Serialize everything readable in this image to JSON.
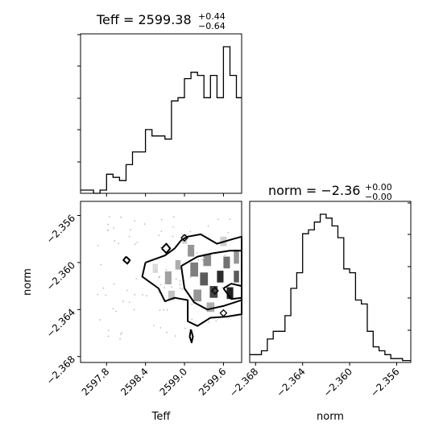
{
  "chart_data": {
    "type": "corner",
    "parameters": [
      {
        "name": "Teff",
        "xlabel": "Teff",
        "title": {
          "prefix": "Teff = ",
          "value": "2599.38",
          "plus": "+0.44",
          "minus": "−0.64"
        },
        "range": [
          2597.4,
          2599.88
        ],
        "ticks": [
          2597.8,
          2598.4,
          2599.0,
          2599.6
        ],
        "tick_labels": [
          "2597.8",
          "2598.4",
          "2599.0",
          "2599.6"
        ],
        "histogram": {
          "bin_edges": [
            2597.4,
            2597.5,
            2597.6,
            2597.7,
            2597.8,
            2597.9,
            2598.0,
            2598.1,
            2598.2,
            2598.3,
            2598.4,
            2598.5,
            2598.6,
            2598.7,
            2598.8,
            2598.9,
            2599.0,
            2599.1,
            2599.2,
            2599.3,
            2599.4,
            2599.5,
            2599.6,
            2599.7,
            2599.8,
            2599.88
          ],
          "counts": [
            1,
            1,
            0,
            1,
            6,
            5,
            4,
            9,
            13,
            13,
            20,
            18,
            18,
            17,
            29,
            30,
            36,
            38,
            37,
            30,
            37,
            30,
            46,
            37,
            30
          ]
        }
      },
      {
        "name": "norm",
        "xlabel": "norm",
        "ylabel": "norm",
        "title": {
          "prefix": "norm = ",
          "value": "−2.36",
          "plus": "+0.00",
          "minus": "−0.00"
        },
        "range": [
          -2.3685,
          -2.3548
        ],
        "ticks": [
          -2.368,
          -2.364,
          -2.36,
          -2.356
        ],
        "tick_labels": [
          "−2.368",
          "−2.364",
          "−2.360",
          "−2.356"
        ],
        "histogram": {
          "bin_edges": [
            -2.3685,
            -2.368,
            -2.3675,
            -2.367,
            -2.3665,
            -2.366,
            -2.3655,
            -2.365,
            -2.3645,
            -2.364,
            -2.3635,
            -2.363,
            -2.3625,
            -2.362,
            -2.3615,
            -2.361,
            -2.3605,
            -2.36,
            -2.3595,
            -2.359,
            -2.3585,
            -2.358,
            -2.3575,
            -2.357,
            -2.3565,
            -2.356,
            -2.3555,
            -2.3548
          ],
          "counts": [
            2,
            2,
            3,
            6,
            8,
            8,
            12,
            19,
            23,
            33,
            34,
            36,
            38,
            37,
            35,
            32,
            24,
            23,
            16,
            15,
            8,
            4,
            3,
            2,
            1,
            1,
            0.5
          ]
        }
      }
    ],
    "joint": {
      "x": "Teff",
      "y": "norm",
      "xlim": [
        2597.4,
        2599.88
      ],
      "ylim": [
        -2.3685,
        -2.3548
      ],
      "density": [
        {
          "x": 2598.9,
          "y": -2.3602,
          "w": 0.08,
          "h": 0.0008,
          "level": 0.35
        },
        {
          "x": 2598.75,
          "y": -2.3613,
          "w": 0.1,
          "h": 0.0011,
          "level": 0.4
        },
        {
          "x": 2599.1,
          "y": -2.359,
          "w": 0.1,
          "h": 0.001,
          "level": 0.45
        },
        {
          "x": 2599.15,
          "y": -2.3606,
          "w": 0.12,
          "h": 0.0012,
          "level": 0.55
        },
        {
          "x": 2599.35,
          "y": -2.3598,
          "w": 0.12,
          "h": 0.001,
          "level": 0.5
        },
        {
          "x": 2599.3,
          "y": -2.3614,
          "w": 0.12,
          "h": 0.0011,
          "level": 0.7
        },
        {
          "x": 2599.45,
          "y": -2.3625,
          "w": 0.12,
          "h": 0.001,
          "level": 0.8
        },
        {
          "x": 2599.55,
          "y": -2.3612,
          "w": 0.1,
          "h": 0.001,
          "level": 0.9
        },
        {
          "x": 2599.7,
          "y": -2.3626,
          "w": 0.1,
          "h": 0.001,
          "level": 0.95
        },
        {
          "x": 2599.65,
          "y": -2.36,
          "w": 0.1,
          "h": 0.001,
          "level": 0.6
        },
        {
          "x": 2599.8,
          "y": -2.3595,
          "w": 0.08,
          "h": 0.0012,
          "level": 0.45
        },
        {
          "x": 2599.8,
          "y": -2.3612,
          "w": 0.08,
          "h": 0.001,
          "level": 0.7
        },
        {
          "x": 2599.2,
          "y": -2.3628,
          "w": 0.12,
          "h": 0.001,
          "level": 0.45
        },
        {
          "x": 2599.4,
          "y": -2.3638,
          "w": 0.12,
          "h": 0.0008,
          "level": 0.35
        },
        {
          "x": 2598.8,
          "y": -2.3628,
          "w": 0.1,
          "h": 0.0008,
          "level": 0.25
        },
        {
          "x": 2599.0,
          "y": -2.358,
          "w": 0.08,
          "h": 0.0008,
          "level": 0.2
        },
        {
          "x": 2599.6,
          "y": -2.3582,
          "w": 0.1,
          "h": 0.0008,
          "level": 0.2
        },
        {
          "x": 2598.55,
          "y": -2.3605,
          "w": 0.08,
          "h": 0.0008,
          "level": 0.15
        }
      ],
      "contours": [
        [
          [
            2598.4,
            -2.36
          ],
          [
            2598.7,
            -2.3594
          ],
          [
            2598.85,
            -2.3588
          ],
          [
            2598.95,
            -2.3581
          ],
          [
            2599.05,
            -2.3578
          ],
          [
            2599.25,
            -2.3576
          ],
          [
            2599.5,
            -2.3584
          ],
          [
            2599.75,
            -2.358
          ],
          [
            2599.88,
            -2.3578
          ],
          [
            2599.88,
            -2.3644
          ],
          [
            2599.65,
            -2.3646
          ],
          [
            2599.4,
            -2.3647
          ],
          [
            2599.2,
            -2.3654
          ],
          [
            2599.05,
            -2.365
          ],
          [
            2599.05,
            -2.3632
          ],
          [
            2598.85,
            -2.363
          ],
          [
            2598.7,
            -2.3633
          ],
          [
            2598.6,
            -2.3622
          ],
          [
            2598.35,
            -2.3612
          ],
          [
            2598.4,
            -2.36
          ]
        ],
        [
          [
            2598.95,
            -2.3603
          ],
          [
            2599.2,
            -2.3595
          ],
          [
            2599.45,
            -2.3592
          ],
          [
            2599.7,
            -2.359
          ],
          [
            2599.88,
            -2.359
          ],
          [
            2599.88,
            -2.3632
          ],
          [
            2599.6,
            -2.3637
          ],
          [
            2599.35,
            -2.364
          ],
          [
            2599.15,
            -2.3634
          ],
          [
            2599.0,
            -2.3622
          ],
          [
            2598.95,
            -2.3603
          ]
        ],
        [
          [
            2599.6,
            -2.3622
          ],
          [
            2599.72,
            -2.3618
          ],
          [
            2599.88,
            -2.362
          ],
          [
            2599.88,
            -2.363
          ],
          [
            2599.72,
            -2.3631
          ],
          [
            2599.6,
            -2.3622
          ]
        ],
        [
          [
            2598.65,
            -2.3588
          ],
          [
            2598.72,
            -2.3584
          ],
          [
            2598.78,
            -2.3588
          ],
          [
            2598.72,
            -2.3592
          ],
          [
            2598.65,
            -2.3588
          ]
        ],
        [
          [
            2598.1,
            -2.3595
          ],
          [
            2598.16,
            -2.3598
          ],
          [
            2598.12,
            -2.3601
          ],
          [
            2598.06,
            -2.3598
          ],
          [
            2598.1,
            -2.3595
          ]
        ],
        [
          [
            2599.1,
            -2.3657
          ],
          [
            2599.13,
            -2.3663
          ],
          [
            2599.11,
            -2.3668
          ],
          [
            2599.08,
            -2.3663
          ],
          [
            2599.1,
            -2.3657
          ]
        ]
      ],
      "markers": [
        {
          "x": 2599.47,
          "y": -2.3624
        },
        {
          "x": 2599.0,
          "y": -2.3579
        },
        {
          "x": 2599.6,
          "y": -2.3643
        }
      ]
    }
  }
}
